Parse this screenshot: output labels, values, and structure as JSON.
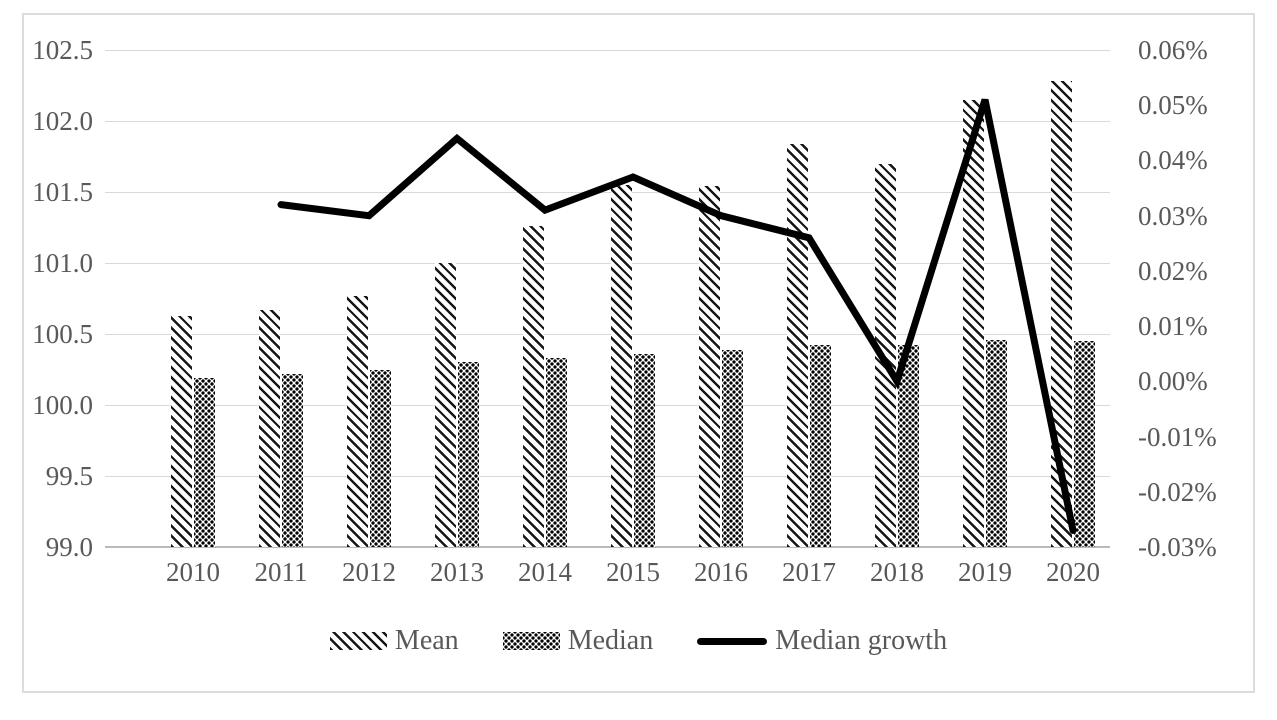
{
  "figure": {
    "background": "#ffffff",
    "border_color": "#dcdcdc",
    "text_color": "#595959",
    "gridline_color": "#d9d9d9",
    "axis_line_color": "#b9b9b9"
  },
  "chart_data": {
    "type": "bar",
    "subtype": "combo-bar-line-dual-axis",
    "title": "",
    "xlabel": "",
    "ylabel": "",
    "grid": true,
    "categories": [
      "2010",
      "2011",
      "2012",
      "2013",
      "2014",
      "2015",
      "2016",
      "2017",
      "2018",
      "2019",
      "2020"
    ],
    "series": [
      {
        "name": "Mean",
        "type": "bar",
        "axis": "left",
        "pattern": "diagonal-hatch",
        "color": "#000000",
        "values": [
          100.63,
          100.67,
          100.77,
          101.0,
          101.26,
          101.55,
          101.54,
          101.84,
          101.7,
          102.15,
          102.28
        ]
      },
      {
        "name": "Median",
        "type": "bar",
        "axis": "left",
        "pattern": "dots",
        "color": "#000000",
        "values": [
          100.19,
          100.22,
          100.25,
          100.3,
          100.33,
          100.36,
          100.39,
          100.42,
          100.42,
          100.46,
          100.45
        ]
      },
      {
        "name": "Median growth",
        "type": "line",
        "axis": "right",
        "color": "#000000",
        "stroke_width": 7,
        "values": [
          null,
          0.032,
          0.03,
          0.044,
          0.031,
          0.037,
          0.03,
          0.026,
          0.0,
          0.051,
          -0.027
        ]
      }
    ],
    "left_axis": {
      "min": 99.0,
      "max": 102.5,
      "tick_values": [
        102.5,
        102.0,
        101.5,
        101.0,
        100.5,
        100.0,
        99.5,
        99.0
      ],
      "tick_labels": [
        "102.5",
        "102.0",
        "101.5",
        "101.0",
        "100.5",
        "100.0",
        "99.5",
        "99.0"
      ]
    },
    "right_axis": {
      "min": -0.03,
      "max": 0.06,
      "unit": "%",
      "tick_values": [
        0.06,
        0.05,
        0.04,
        0.03,
        0.02,
        0.01,
        0.0,
        -0.01,
        -0.02,
        -0.03
      ],
      "tick_labels": [
        "0.06%",
        "0.05%",
        "0.04%",
        "0.03%",
        "0.02%",
        "0.01%",
        "0.00%",
        "-0.01%",
        "-0.02%",
        "-0.03%"
      ]
    },
    "legend": {
      "position": "bottom",
      "entries": [
        "Mean",
        "Median",
        "Median growth"
      ]
    }
  }
}
